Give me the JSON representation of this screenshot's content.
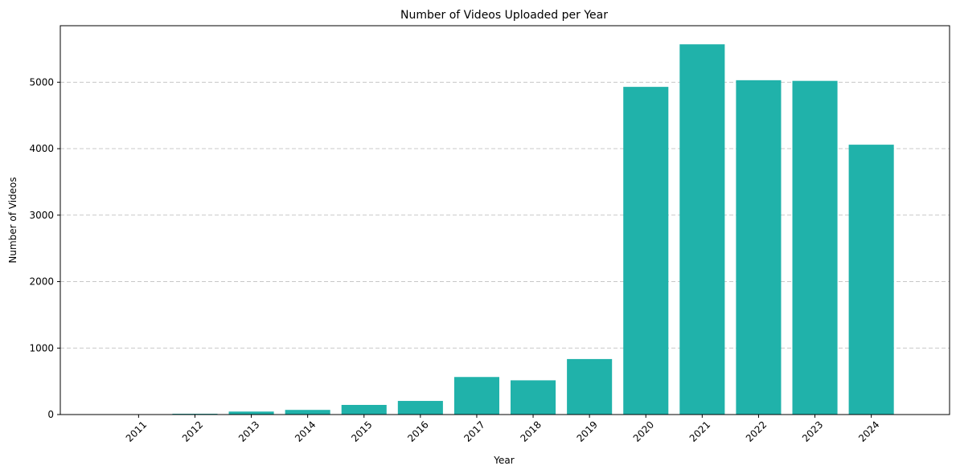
{
  "chart_data": {
    "type": "bar",
    "title": "Number of Videos Uploaded per Year",
    "xlabel": "Year",
    "ylabel": "Number of Videos",
    "categories": [
      "2011",
      "2012",
      "2013",
      "2014",
      "2015",
      "2016",
      "2017",
      "2018",
      "2019",
      "2020",
      "2021",
      "2022",
      "2023",
      "2024"
    ],
    "values": [
      2,
      12,
      45,
      70,
      145,
      205,
      565,
      515,
      835,
      4930,
      5570,
      5030,
      5020,
      4060
    ],
    "ylim": [
      0,
      5850
    ],
    "yticks": [
      0,
      1000,
      2000,
      3000,
      4000,
      5000
    ],
    "ytick_labels": [
      "0",
      "1000",
      "2000",
      "3000",
      "4000",
      "5000"
    ],
    "grid": "y-dashed",
    "bar_color": "#20b2aa",
    "legend": "none"
  }
}
